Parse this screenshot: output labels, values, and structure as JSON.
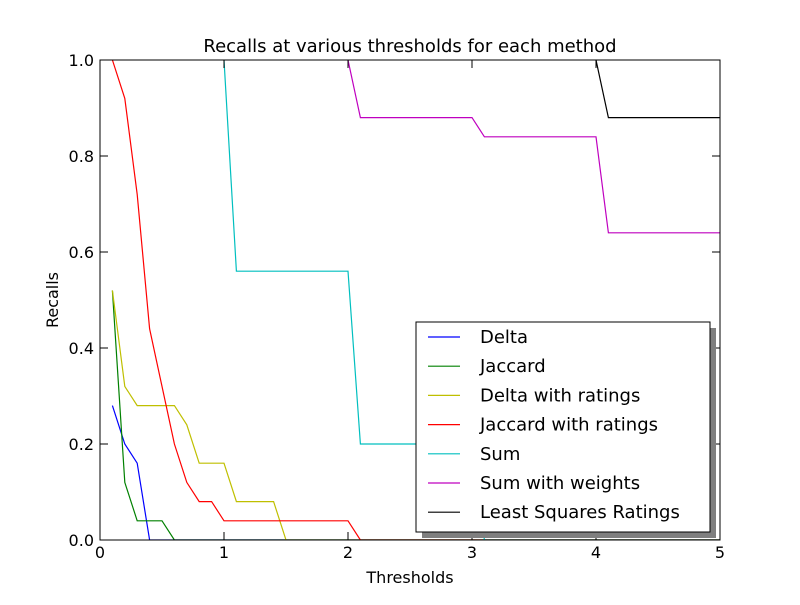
{
  "chart_data": {
    "type": "line",
    "title": "Recalls at various thresholds for each method",
    "xlabel": "Thresholds",
    "ylabel": "Recalls",
    "xlim": [
      0,
      5
    ],
    "ylim": [
      0,
      1.0
    ],
    "xticks": [
      0,
      1,
      2,
      3,
      4,
      5
    ],
    "xtick_labels": [
      "0",
      "1",
      "2",
      "3",
      "4",
      "5"
    ],
    "yticks": [
      0.0,
      0.2,
      0.4,
      0.6,
      0.8,
      1.0
    ],
    "ytick_labels": [
      "0.0",
      "0.2",
      "0.4",
      "0.6",
      "0.8",
      "1.0"
    ],
    "grid": false,
    "legend_position": "lower-right",
    "series": [
      {
        "name": "Delta",
        "color": "#0000ff",
        "x": [
          0.1,
          0.2,
          0.3,
          0.4,
          0.5,
          5.0
        ],
        "y": [
          0.28,
          0.2,
          0.16,
          0.0,
          0.0,
          0.0
        ]
      },
      {
        "name": "Jaccard",
        "color": "#008000",
        "x": [
          0.1,
          0.2,
          0.3,
          0.4,
          0.5,
          0.6,
          5.0
        ],
        "y": [
          0.52,
          0.12,
          0.04,
          0.04,
          0.04,
          0.0,
          0.0
        ]
      },
      {
        "name": "Delta with ratings",
        "color": "#bfbf00",
        "x": [
          0.1,
          0.2,
          0.3,
          0.4,
          0.5,
          0.6,
          0.7,
          0.8,
          0.9,
          1.0,
          1.1,
          1.2,
          1.3,
          1.4,
          1.5,
          5.0
        ],
        "y": [
          0.52,
          0.32,
          0.28,
          0.28,
          0.28,
          0.28,
          0.24,
          0.16,
          0.16,
          0.16,
          0.08,
          0.08,
          0.08,
          0.08,
          0.0,
          0.0
        ]
      },
      {
        "name": "Jaccard with ratings",
        "color": "#ff0000",
        "x": [
          0.1,
          0.2,
          0.3,
          0.4,
          0.5,
          0.6,
          0.7,
          0.8,
          0.9,
          1.0,
          1.1,
          1.2,
          1.3,
          1.4,
          1.5,
          1.6,
          1.7,
          1.8,
          1.9,
          2.0,
          2.1,
          5.0
        ],
        "y": [
          1.0,
          0.92,
          0.72,
          0.44,
          0.32,
          0.2,
          0.12,
          0.08,
          0.08,
          0.04,
          0.04,
          0.04,
          0.04,
          0.04,
          0.04,
          0.04,
          0.04,
          0.04,
          0.04,
          0.04,
          0.0,
          0.0
        ]
      },
      {
        "name": "Sum",
        "color": "#00bfbf",
        "x": [
          1.0,
          1.1,
          2.0,
          2.1,
          3.0,
          3.1,
          5.0
        ],
        "y": [
          1.0,
          0.56,
          0.56,
          0.2,
          0.2,
          0.0,
          0.0
        ]
      },
      {
        "name": "Sum with weights",
        "color": "#bf00bf",
        "x": [
          2.0,
          2.1,
          3.0,
          3.1,
          4.0,
          4.1,
          5.0
        ],
        "y": [
          1.0,
          0.88,
          0.88,
          0.84,
          0.84,
          0.64,
          0.64
        ]
      },
      {
        "name": "Least Squares Ratings",
        "color": "#000000",
        "x": [
          4.0,
          4.1,
          5.0
        ],
        "y": [
          1.0,
          0.88,
          0.88
        ]
      }
    ]
  }
}
